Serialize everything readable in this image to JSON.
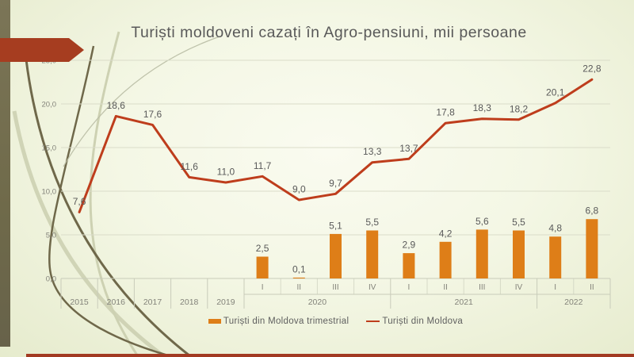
{
  "slide": {
    "title": "Turiști moldoveni cazați în Agro-pensiuni, mii persoane"
  },
  "colors": {
    "bar": "#de7e18",
    "line": "#be3d1c",
    "arrow": "#a63d20",
    "bottom_strip": "#a23a22",
    "left_bar": "#6f6a4a",
    "title_text": "#595959",
    "value_label_text": "#595959",
    "axis_text": "#83837a",
    "gridline": "#dadcc9",
    "axis_line": "#c9ccba"
  },
  "legend": {
    "items": [
      {
        "label": "Turiști din Moldova trimestrial",
        "swatch": "bar-swatch",
        "color": "#de7e18"
      },
      {
        "label": "Turiști din Moldova",
        "swatch": "line-swatch",
        "color": "#be3d1c"
      }
    ]
  },
  "chart_data": {
    "type": "combo-bar-line",
    "title": "Turiști moldoveni cazați în Agro-pensiuni, mii persoane",
    "value_label_format": "decimal-comma",
    "grid": true,
    "legend_position": "bottom",
    "y_axis": {
      "min": 0,
      "max": 25,
      "step": 5,
      "tick_labels": [
        "0,0",
        "5,0",
        "10,0",
        "15,0",
        "20,0",
        "25,0"
      ]
    },
    "categories": [
      {
        "quarter": "",
        "year": "2015"
      },
      {
        "quarter": "",
        "year": "2016"
      },
      {
        "quarter": "",
        "year": "2017"
      },
      {
        "quarter": "",
        "year": "2018"
      },
      {
        "quarter": "",
        "year": "2019"
      },
      {
        "quarter": "I",
        "year": "2020"
      },
      {
        "quarter": "II",
        "year": "2020"
      },
      {
        "quarter": "III",
        "year": "2020"
      },
      {
        "quarter": "IV",
        "year": "2020"
      },
      {
        "quarter": "I",
        "year": "2021"
      },
      {
        "quarter": "II",
        "year": "2021"
      },
      {
        "quarter": "III",
        "year": "2021"
      },
      {
        "quarter": "IV",
        "year": "2021"
      },
      {
        "quarter": "I",
        "year": "2022"
      },
      {
        "quarter": "II",
        "year": "2022"
      }
    ],
    "series": [
      {
        "name": "Turiști din Moldova trimestrial",
        "type": "bar",
        "color": "#de7e18",
        "values": [
          null,
          null,
          null,
          null,
          null,
          2.5,
          0.1,
          5.1,
          5.5,
          2.9,
          4.2,
          5.6,
          5.5,
          4.8,
          6.8
        ]
      },
      {
        "name": "Turiști din Moldova",
        "type": "line",
        "color": "#be3d1c",
        "values": [
          7.6,
          18.6,
          17.6,
          11.6,
          11.0,
          11.7,
          9.0,
          9.7,
          13.3,
          13.7,
          17.8,
          18.3,
          18.2,
          20.1,
          22.8
        ]
      }
    ]
  }
}
